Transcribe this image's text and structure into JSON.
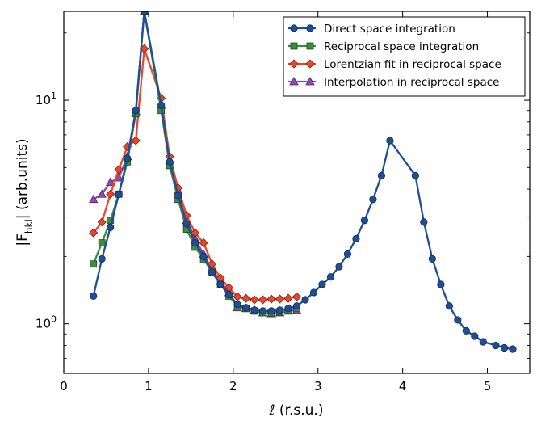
{
  "chart_data": {
    "type": "line",
    "title": "",
    "xlabel": {
      "symbol": "ℓ",
      "text": " (r.s.u.)"
    },
    "ylabel": {
      "prefix": "|F",
      "subscript": "hkl",
      "suffix": "| (arb.units)"
    },
    "xlim": [
      0,
      5.5
    ],
    "ylim": [
      0.6,
      25
    ],
    "yscale": "log",
    "grid": false,
    "legend_position": "top-right",
    "x_ticks": [
      {
        "value": 0,
        "label": "0"
      },
      {
        "value": 1,
        "label": "1"
      },
      {
        "value": 2,
        "label": "2"
      },
      {
        "value": 3,
        "label": "3"
      },
      {
        "value": 4,
        "label": "4"
      },
      {
        "value": 5,
        "label": "5"
      }
    ],
    "y_ticks": [
      {
        "value": 1,
        "base": "10",
        "exp": "0"
      },
      {
        "value": 10,
        "base": "10",
        "exp": "1"
      }
    ],
    "series": [
      {
        "name": "Direct space integration",
        "color": "#1f4e96",
        "marker": "circle",
        "x": [
          0.35,
          0.45,
          0.55,
          0.65,
          0.75,
          0.85,
          0.95,
          1.15,
          1.25,
          1.35,
          1.45,
          1.55,
          1.65,
          1.75,
          1.85,
          1.95,
          2.05,
          2.15,
          2.25,
          2.35,
          2.45,
          2.55,
          2.65,
          2.75,
          2.85,
          2.95,
          3.05,
          3.15,
          3.25,
          3.35,
          3.45,
          3.55,
          3.65,
          3.75,
          3.85,
          4.15,
          4.25,
          4.35,
          4.45,
          4.55,
          4.65,
          4.75,
          4.85,
          4.95,
          5.1,
          5.2,
          5.3
        ],
        "y": [
          1.33,
          1.95,
          2.7,
          3.8,
          5.5,
          9.0,
          25.0,
          9.5,
          5.3,
          3.75,
          2.8,
          2.3,
          2.0,
          1.7,
          1.5,
          1.35,
          1.22,
          1.18,
          1.15,
          1.14,
          1.14,
          1.15,
          1.17,
          1.2,
          1.28,
          1.38,
          1.5,
          1.62,
          1.8,
          2.05,
          2.4,
          2.9,
          3.6,
          4.6,
          6.6,
          4.6,
          2.85,
          1.95,
          1.5,
          1.2,
          1.04,
          0.93,
          0.88,
          0.83,
          0.8,
          0.78,
          0.77
        ]
      },
      {
        "name": "Reciprocal space integration",
        "color": "#3f8a3f",
        "marker": "square",
        "x": [
          0.35,
          0.45,
          0.55,
          0.65,
          0.75,
          0.85,
          0.95,
          1.15,
          1.25,
          1.35,
          1.45,
          1.55,
          1.65,
          1.75,
          1.85,
          1.95,
          2.05,
          2.15,
          2.25,
          2.35,
          2.45,
          2.55,
          2.65,
          2.75
        ],
        "y": [
          1.85,
          2.3,
          2.9,
          3.8,
          5.3,
          8.7,
          25.0,
          9.0,
          5.1,
          3.6,
          2.65,
          2.2,
          1.95,
          1.7,
          1.5,
          1.33,
          1.2,
          1.17,
          1.14,
          1.12,
          1.12,
          1.13,
          1.15,
          1.17
        ]
      },
      {
        "name": "Lorentzian fit in reciprocal space",
        "color": "#e8472a",
        "marker": "diamond",
        "x": [
          0.35,
          0.45,
          0.55,
          0.65,
          0.75,
          0.85,
          0.95,
          1.15,
          1.25,
          1.35,
          1.45,
          1.55,
          1.65,
          1.75,
          1.85,
          1.95,
          2.05,
          2.15,
          2.25,
          2.35,
          2.45,
          2.55,
          2.65,
          2.75
        ],
        "y": [
          2.55,
          2.85,
          3.8,
          4.9,
          6.2,
          6.6,
          17.0,
          10.2,
          5.6,
          4.05,
          3.05,
          2.55,
          2.3,
          1.85,
          1.6,
          1.45,
          1.32,
          1.3,
          1.28,
          1.28,
          1.29,
          1.29,
          1.3,
          1.32
        ]
      },
      {
        "name": "Interpolation in reciprocal space",
        "color": "#8b4fb0",
        "marker": "triangle",
        "x": [
          0.35,
          0.45,
          0.55,
          0.65,
          0.75,
          0.85,
          0.95,
          1.15,
          1.25,
          1.35,
          1.45,
          1.55,
          1.65,
          1.75,
          1.85,
          1.95,
          2.05,
          2.15,
          2.25,
          2.35,
          2.45,
          2.55,
          2.65,
          2.75
        ],
        "y": [
          3.6,
          3.8,
          4.3,
          4.5,
          5.6,
          8.9,
          25.0,
          9.5,
          5.4,
          3.95,
          2.9,
          2.4,
          2.05,
          1.75,
          1.55,
          1.38,
          1.18,
          1.17,
          1.15,
          1.12,
          1.11,
          1.12,
          1.14,
          1.15
        ]
      }
    ]
  }
}
